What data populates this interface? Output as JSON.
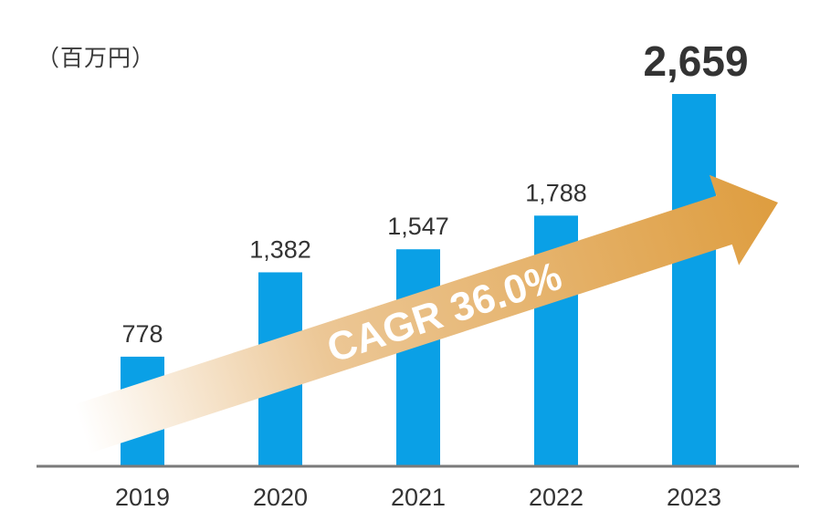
{
  "unit_label": "（百万円）",
  "colors": {
    "bar": "#0aa0e6",
    "highlight_label": "#129fdf",
    "axis": "#7a7a7a",
    "arrow_start": "#ffffff",
    "arrow_mid": "#ecc796",
    "arrow_end": "#de9d3f",
    "text": "#333333"
  },
  "chart_data": {
    "type": "bar",
    "title": "",
    "unit": "百万円",
    "xlabel": "",
    "ylabel": "（百万円）",
    "categories": [
      "2019",
      "2020",
      "2021",
      "2022",
      "2023"
    ],
    "values": [
      778,
      1382,
      1547,
      1788,
      2659
    ],
    "value_labels": [
      "778",
      "1,382",
      "1,547",
      "1,788",
      "2,659"
    ],
    "highlight_index": 4,
    "ylim": [
      0,
      2659
    ],
    "grid": false,
    "legend": "none",
    "annotation": {
      "type": "arrow",
      "text": "CAGR 36.0%",
      "direction": "up-right"
    }
  }
}
